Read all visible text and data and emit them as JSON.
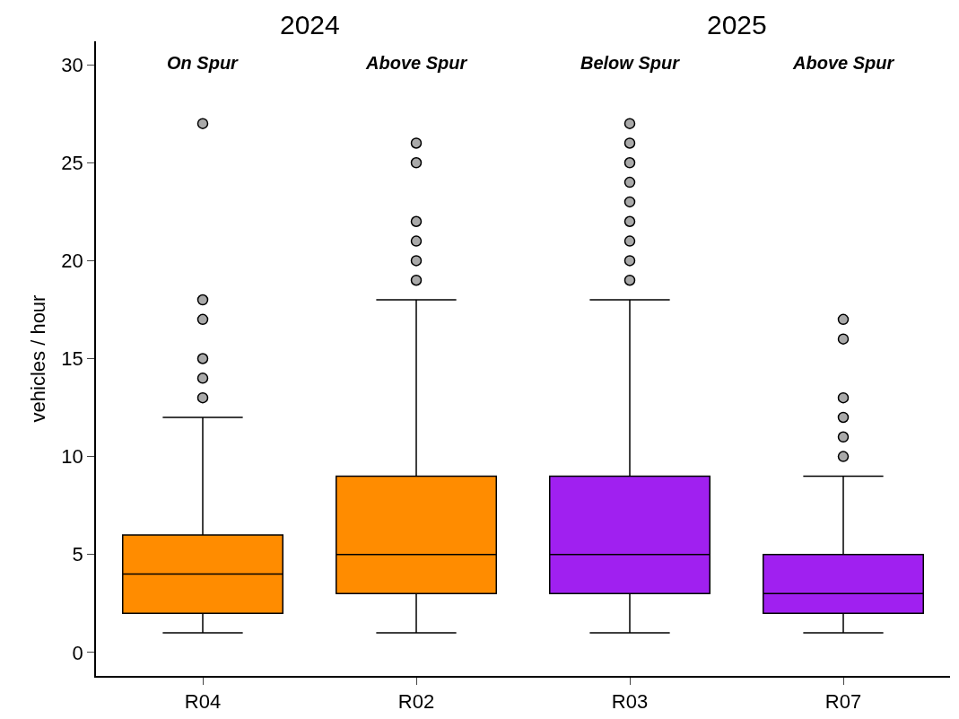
{
  "chart_data": {
    "type": "box",
    "ylabel": "vehicles / hour",
    "categories": [
      "R04",
      "R02",
      "R03",
      "R07"
    ],
    "colors": [
      "#ff8c00",
      "#ff8c00",
      "#a020f0",
      "#a020f0"
    ],
    "boxes": [
      {
        "low": 1,
        "q1": 2,
        "median": 4,
        "q3": 6,
        "high": 12,
        "outliers": [
          13,
          14,
          15,
          17,
          18,
          27
        ]
      },
      {
        "low": 1,
        "q1": 3,
        "median": 5,
        "q3": 9,
        "high": 18,
        "outliers": [
          19,
          20,
          21,
          22,
          25,
          26
        ]
      },
      {
        "low": 1,
        "q1": 3,
        "median": 5,
        "q3": 9,
        "high": 18,
        "outliers": [
          19,
          20,
          21,
          22,
          23,
          24,
          25,
          26,
          27
        ]
      },
      {
        "low": 1,
        "q1": 2,
        "median": 3,
        "q3": 5,
        "high": 9,
        "outliers": [
          10,
          11,
          12,
          13,
          16,
          17
        ]
      }
    ],
    "ylim": [
      -1.2,
      31.2
    ],
    "yticks": [
      0,
      5,
      10,
      15,
      20,
      25,
      30
    ],
    "grid": false,
    "marker": "circle",
    "annotations": [
      "2024",
      "2025",
      "On Spur",
      "Above Spur",
      "Below Spur",
      "Above Spur"
    ]
  }
}
